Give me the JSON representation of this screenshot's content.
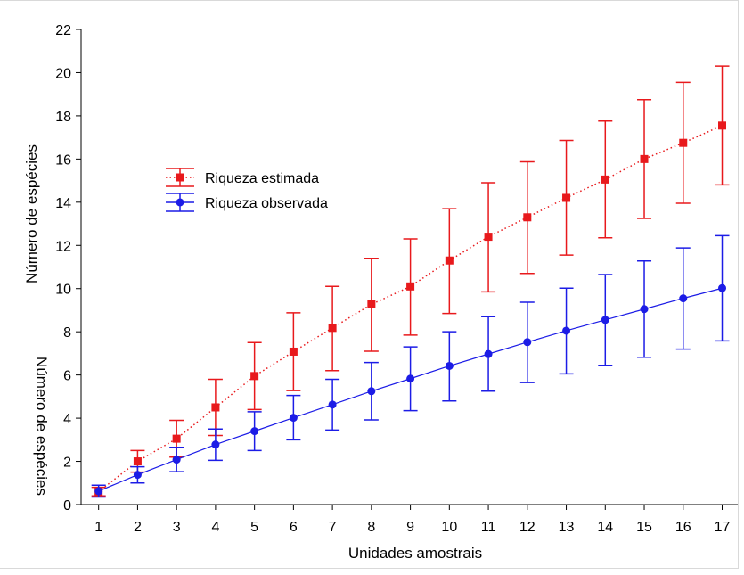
{
  "chart_data": {
    "type": "line",
    "xlabel": "Unidades amostrais",
    "ylabel": "Número de espécies",
    "ylabel_ghost": "Número de espécies",
    "xlim": [
      0.55,
      17.4
    ],
    "ylim": [
      0,
      22
    ],
    "x": [
      1,
      2,
      3,
      4,
      5,
      6,
      7,
      8,
      9,
      10,
      11,
      12,
      13,
      14,
      15,
      16,
      17
    ],
    "x_ticks": [
      "1",
      "2",
      "3",
      "4",
      "5",
      "6",
      "7",
      "8",
      "9",
      "10",
      "11",
      "12",
      "13",
      "14",
      "15",
      "16",
      "17"
    ],
    "y_ticks": [
      "0",
      "2",
      "4",
      "6",
      "8",
      "10",
      "12",
      "14",
      "16",
      "18",
      "20",
      "22"
    ],
    "grid": false,
    "legend_position": "upper-left",
    "series": [
      {
        "name": "Riqueza estimada",
        "color": "#e8191c",
        "marker": "square",
        "line_style": "dotted",
        "values": [
          0.6,
          2.0,
          3.05,
          4.5,
          5.95,
          7.08,
          8.18,
          9.27,
          10.1,
          11.3,
          12.4,
          13.3,
          14.2,
          15.05,
          16.0,
          16.75,
          17.55
        ],
        "upper": [
          0.8,
          2.5,
          3.9,
          5.8,
          7.5,
          8.88,
          10.1,
          11.4,
          12.3,
          13.7,
          14.9,
          15.87,
          16.86,
          17.76,
          18.75,
          19.55,
          20.3
        ],
        "lower": [
          0.4,
          1.5,
          2.2,
          3.2,
          4.4,
          5.28,
          6.2,
          7.1,
          7.85,
          8.85,
          9.85,
          10.7,
          11.55,
          12.35,
          13.25,
          13.95,
          14.8
        ]
      },
      {
        "name": "Riqueza observada",
        "color": "#1c1ce6",
        "marker": "circle",
        "line_style": "solid",
        "values": [
          0.62,
          1.38,
          2.08,
          2.78,
          3.4,
          4.02,
          4.63,
          5.25,
          5.83,
          6.42,
          6.97,
          7.52,
          8.05,
          8.55,
          9.05,
          9.55,
          10.02
        ],
        "upper": [
          0.9,
          1.75,
          2.65,
          3.5,
          4.3,
          5.05,
          5.8,
          6.58,
          7.3,
          8.0,
          8.7,
          9.37,
          10.02,
          10.65,
          11.28,
          11.88,
          12.45
        ],
        "lower": [
          0.35,
          1.0,
          1.52,
          2.05,
          2.5,
          3.0,
          3.45,
          3.92,
          4.35,
          4.8,
          5.25,
          5.65,
          6.05,
          6.45,
          6.82,
          7.2,
          7.58
        ]
      }
    ]
  }
}
